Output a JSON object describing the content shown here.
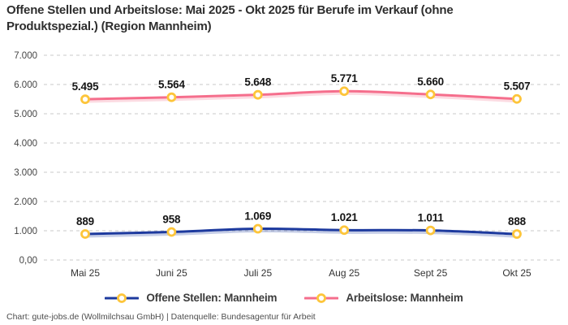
{
  "title": "Offene Stellen und Arbeitslose: Mai 2025 - Okt 2025 für Berufe im Verkauf (ohne Produktspezial.) (Region Mannheim)",
  "footer": "Chart: gute-jobs.de (Wollmilchsau GmbH) | Datenquelle: Bundesagentur für Arbeit",
  "colors": {
    "title_text": "#2e2e2e",
    "data_label": "#151515",
    "axis_text": "#444444",
    "gridline": "#c9c9c9",
    "legend_text": "#3b3b3b",
    "footer_text": "#4d4d4d",
    "series_blue": "#1d3a9e",
    "series_pink": "#f56e8c",
    "marker_yellow": "#fdc53a"
  },
  "chart_data": {
    "type": "line",
    "title": "Offene Stellen und Arbeitslose: Mai 2025 - Okt 2025 für Berufe im Verkauf (ohne Produktspezial.) (Region Mannheim)",
    "categories": [
      "Mai 25",
      "Juni 25",
      "Juli 25",
      "Aug 25",
      "Sept 25",
      "Okt 25"
    ],
    "series": [
      {
        "name": "Offene Stellen: Mannheim",
        "color": "#1d3a9e",
        "values": [
          889,
          958,
          1069,
          1021,
          1011,
          888
        ],
        "labels": [
          "889",
          "958",
          "1.069",
          "1.021",
          "1.011",
          "888"
        ]
      },
      {
        "name": "Arbeitslose: Mannheim",
        "color": "#f56e8c",
        "values": [
          5495,
          5564,
          5648,
          5771,
          5660,
          5507
        ],
        "labels": [
          "5.495",
          "5.564",
          "5.648",
          "5.771",
          "5.660",
          "5.507"
        ]
      }
    ],
    "xlabel": "",
    "ylabel": "",
    "ylim": [
      0,
      7000
    ],
    "ytick_interval": 1000,
    "ytick_labels": [
      "0,00",
      "1.000",
      "2.000",
      "3.000",
      "4.000",
      "5.000",
      "6.000",
      "7.000"
    ],
    "grid": "horizontal-dashed",
    "legend_position": "bottom",
    "marker": "yellow-ring",
    "marker_color": "#fdc53a"
  }
}
